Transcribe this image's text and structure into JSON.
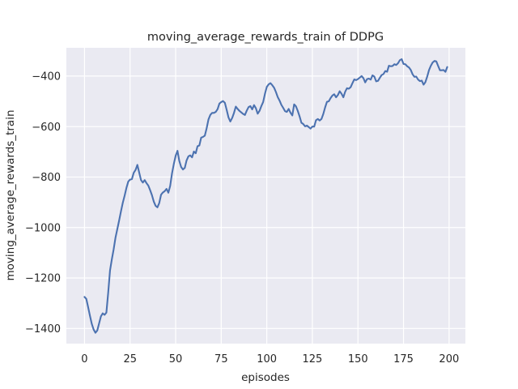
{
  "figure": {
    "background": "#ffffff"
  },
  "chart_data": {
    "type": "line",
    "title": "moving_average_rewards_train of DDPG",
    "xlabel": "episodes",
    "ylabel": "moving_average_rewards_train",
    "x_start": 0,
    "x_step": 1,
    "values": [
      -1275,
      -1283,
      -1316,
      -1350,
      -1382,
      -1404,
      -1417,
      -1408,
      -1380,
      -1352,
      -1340,
      -1346,
      -1337,
      -1258,
      -1170,
      -1126,
      -1086,
      -1040,
      -1006,
      -972,
      -936,
      -902,
      -874,
      -843,
      -818,
      -810,
      -808,
      -783,
      -772,
      -752,
      -782,
      -812,
      -822,
      -812,
      -824,
      -834,
      -852,
      -872,
      -897,
      -914,
      -920,
      -903,
      -870,
      -861,
      -856,
      -847,
      -862,
      -835,
      -786,
      -748,
      -716,
      -696,
      -736,
      -760,
      -770,
      -764,
      -734,
      -718,
      -714,
      -722,
      -699,
      -706,
      -678,
      -675,
      -644,
      -641,
      -636,
      -607,
      -572,
      -554,
      -546,
      -546,
      -542,
      -531,
      -509,
      -503,
      -499,
      -506,
      -534,
      -564,
      -580,
      -566,
      -546,
      -521,
      -530,
      -538,
      -544,
      -550,
      -554,
      -537,
      -523,
      -519,
      -532,
      -515,
      -527,
      -549,
      -538,
      -519,
      -503,
      -470,
      -443,
      -433,
      -428,
      -436,
      -446,
      -463,
      -483,
      -497,
      -514,
      -526,
      -539,
      -542,
      -530,
      -545,
      -556,
      -512,
      -520,
      -538,
      -560,
      -585,
      -590,
      -599,
      -596,
      -602,
      -608,
      -600,
      -600,
      -575,
      -570,
      -576,
      -570,
      -550,
      -524,
      -502,
      -500,
      -487,
      -477,
      -472,
      -484,
      -475,
      -460,
      -470,
      -484,
      -462,
      -448,
      -450,
      -444,
      -428,
      -413,
      -416,
      -412,
      -406,
      -400,
      -408,
      -425,
      -412,
      -410,
      -414,
      -397,
      -402,
      -421,
      -419,
      -407,
      -396,
      -392,
      -380,
      -383,
      -359,
      -361,
      -360,
      -353,
      -356,
      -349,
      -337,
      -333,
      -352,
      -353,
      -361,
      -366,
      -376,
      -393,
      -403,
      -402,
      -414,
      -420,
      -418,
      -434,
      -424,
      -402,
      -376,
      -359,
      -346,
      -340,
      -342,
      -360,
      -377,
      -377,
      -376,
      -383,
      -364
    ],
    "xlim": [
      -9.95,
      208.95
    ],
    "ylim": [
      -1460,
      -288
    ],
    "xticks": [
      {
        "v": 0,
        "label": "0"
      },
      {
        "v": 25,
        "label": "25"
      },
      {
        "v": 50,
        "label": "50"
      },
      {
        "v": 75,
        "label": "75"
      },
      {
        "v": 100,
        "label": "100"
      },
      {
        "v": 125,
        "label": "125"
      },
      {
        "v": 150,
        "label": "150"
      },
      {
        "v": 175,
        "label": "175"
      },
      {
        "v": 200,
        "label": "200"
      }
    ],
    "yticks": [
      {
        "v": -400,
        "label": "−400"
      },
      {
        "v": -600,
        "label": "−600"
      },
      {
        "v": -800,
        "label": "−800"
      },
      {
        "v": -1000,
        "label": "−1000"
      },
      {
        "v": -1200,
        "label": "−1200"
      },
      {
        "v": -1400,
        "label": "−1400"
      }
    ],
    "grid": true,
    "legend_position": "none",
    "style": {
      "line_color": "#4c72b0",
      "axes_background": "#eaeaf2",
      "grid_color": "#ffffff",
      "text_color": "#262626"
    }
  }
}
